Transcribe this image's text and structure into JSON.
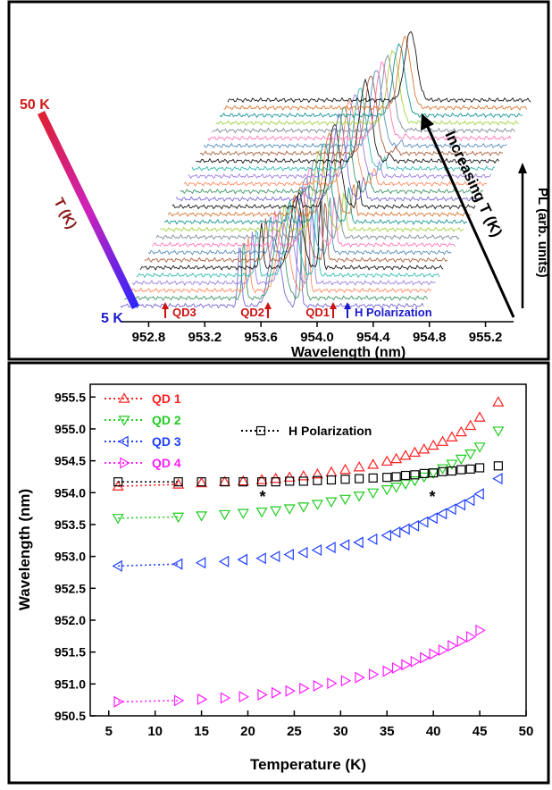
{
  "chart_data": [
    {
      "type": "line",
      "panel": "top",
      "xlabel": "Wavelength (nm)",
      "ylabel": "PL (arb. units)",
      "depth_label": "Increasing T (K)",
      "x_ticks": [
        "952.8",
        "953.2",
        "953.6",
        "954.0",
        "954.4",
        "954.8",
        "955.2"
      ],
      "xlim": [
        952.6,
        955.4
      ],
      "temperature_scale": {
        "label": "T (K)",
        "top": "50 K",
        "bottom": "5 K",
        "color_top": "#e0202a",
        "color_bottom": "#2626ff"
      },
      "markers": [
        {
          "label": "QD3",
          "wavelength": 952.82,
          "color": "#cc1111"
        },
        {
          "label": "QD2",
          "wavelength": 953.62,
          "color": "#cc1111"
        },
        {
          "label": "QD1",
          "wavelength": 954.1,
          "color": "#cc1111"
        },
        {
          "label": "H Polarization",
          "wavelength": 954.2,
          "color": "#1a1acc"
        }
      ],
      "trace_count": 28,
      "temperatures_K": [
        5,
        50
      ]
    },
    {
      "type": "scatter",
      "panel": "bottom",
      "xlabel": "Temperature (K)",
      "ylabel": "Wavelength (nm)",
      "xlim": [
        3,
        50
      ],
      "ylim": [
        950.5,
        955.7
      ],
      "x_ticks": [
        "5",
        "10",
        "15",
        "20",
        "25",
        "30",
        "35",
        "40",
        "45",
        "50"
      ],
      "y_ticks": [
        "950.5",
        "951.0",
        "951.5",
        "952.0",
        "952.5",
        "953.0",
        "953.5",
        "954.0",
        "954.5",
        "955.0",
        "955.5"
      ],
      "legend": [
        {
          "name": "QD 1",
          "color": "#ff2020",
          "marker": "triangle-up"
        },
        {
          "name": "QD 2",
          "color": "#22cc22",
          "marker": "triangle-down"
        },
        {
          "name": "QD 3",
          "color": "#2040ff",
          "marker": "triangle-left"
        },
        {
          "name": "QD 4",
          "color": "#ff20ff",
          "marker": "triangle-right"
        },
        {
          "name": "H Polarization",
          "color": "#000000",
          "marker": "square"
        }
      ],
      "annotations": [
        "*",
        "*"
      ],
      "series": [
        {
          "name": "QD 1",
          "x": [
            6,
            12.5,
            15,
            17.5,
            19.5,
            21.5,
            23,
            24.5,
            26,
            27.5,
            29,
            30.5,
            32,
            33.5,
            35,
            36,
            37,
            38,
            39,
            40,
            41,
            42,
            43,
            44,
            45,
            47
          ],
          "y": [
            954.1,
            954.13,
            954.15,
            954.17,
            954.18,
            954.2,
            954.22,
            954.24,
            954.26,
            954.29,
            954.32,
            954.36,
            954.4,
            954.44,
            954.49,
            954.53,
            954.58,
            954.63,
            954.68,
            954.74,
            954.8,
            954.87,
            954.95,
            955.05,
            955.18,
            955.42
          ]
        },
        {
          "name": "QD 2",
          "x": [
            6,
            12.5,
            15,
            17.5,
            19.5,
            21.5,
            23,
            24.5,
            26,
            27.5,
            29,
            30.5,
            32,
            33.5,
            35,
            36,
            37,
            38,
            39,
            40,
            41,
            42,
            43,
            44,
            45,
            47
          ],
          "y": [
            953.6,
            953.62,
            953.64,
            953.66,
            953.68,
            953.7,
            953.72,
            953.75,
            953.78,
            953.82,
            953.86,
            953.9,
            953.95,
            954.0,
            954.05,
            954.09,
            954.14,
            954.19,
            954.25,
            954.31,
            954.38,
            954.45,
            954.53,
            954.61,
            954.72,
            954.97
          ]
        },
        {
          "name": "QD 3",
          "x": [
            6,
            12.5,
            15,
            17.5,
            19.5,
            21.5,
            23,
            24.5,
            26,
            27.5,
            29,
            30.5,
            32,
            33.5,
            35,
            36,
            37,
            38,
            39,
            40,
            41,
            42,
            43,
            44,
            45,
            47
          ],
          "y": [
            952.85,
            952.88,
            952.9,
            952.92,
            952.95,
            952.97,
            953.0,
            953.03,
            953.06,
            953.1,
            953.14,
            953.18,
            953.22,
            953.27,
            953.33,
            953.38,
            953.43,
            953.48,
            953.54,
            953.6,
            953.67,
            953.74,
            953.81,
            953.88,
            953.98,
            954.22
          ]
        },
        {
          "name": "QD 4",
          "x": [
            6,
            12.5,
            15,
            17.5,
            19.5,
            21.5,
            23,
            24.5,
            26,
            27.5,
            29,
            30.5,
            32,
            33.5,
            35,
            36,
            37,
            38,
            39,
            40,
            41,
            42,
            43,
            44,
            45
          ],
          "y": [
            950.72,
            950.74,
            950.76,
            950.78,
            950.8,
            950.83,
            950.86,
            950.89,
            950.93,
            950.97,
            951.01,
            951.05,
            951.1,
            951.15,
            951.2,
            951.25,
            951.3,
            951.35,
            951.41,
            951.47,
            951.53,
            951.6,
            951.67,
            951.74,
            951.84
          ]
        },
        {
          "name": "H Polarization",
          "x": [
            6,
            12.5,
            15,
            17.5,
            19.5,
            21.5,
            23,
            24.5,
            26,
            27.5,
            29,
            30.5,
            32,
            33.5,
            35,
            36,
            37,
            38,
            39,
            40,
            41,
            42,
            43,
            44,
            45,
            47
          ],
          "y": [
            954.17,
            954.17,
            954.17,
            954.17,
            954.17,
            954.17,
            954.17,
            954.18,
            954.18,
            954.19,
            954.2,
            954.21,
            954.22,
            954.23,
            954.24,
            954.25,
            954.27,
            954.28,
            954.3,
            954.31,
            954.33,
            954.34,
            954.36,
            954.37,
            954.39,
            954.42
          ]
        }
      ]
    }
  ]
}
